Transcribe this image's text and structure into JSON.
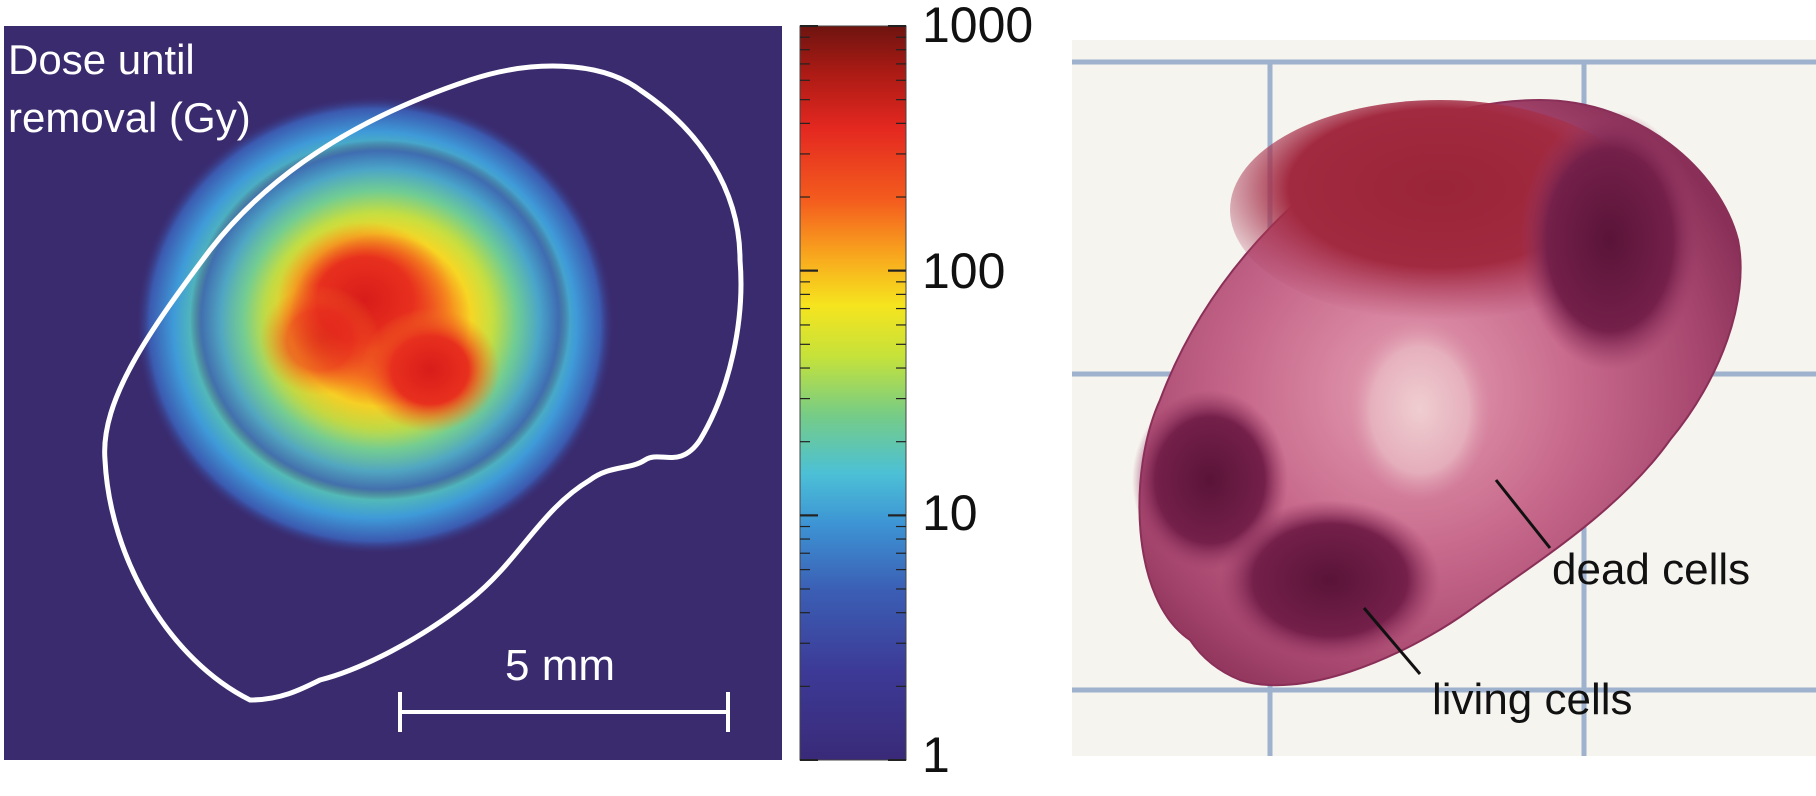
{
  "dose_map": {
    "title_line1": "Dose until",
    "title_line2": "removal (Gy)",
    "scale_bar_label": "5 mm",
    "background_color": "#3a2a6e"
  },
  "colorbar": {
    "scale": "log",
    "ticks": [
      "1000",
      "100",
      "10",
      "1"
    ],
    "colormap": [
      "#3b2a80",
      "#3a4aa8",
      "#3a7fc8",
      "#4fb8e6",
      "#7cd0a0",
      "#c8e040",
      "#f6ec22",
      "#f9a020",
      "#f24a22",
      "#d8201e",
      "#7a1a12"
    ]
  },
  "photo": {
    "annotation_dead": "dead cells",
    "annotation_living": "living cells"
  }
}
